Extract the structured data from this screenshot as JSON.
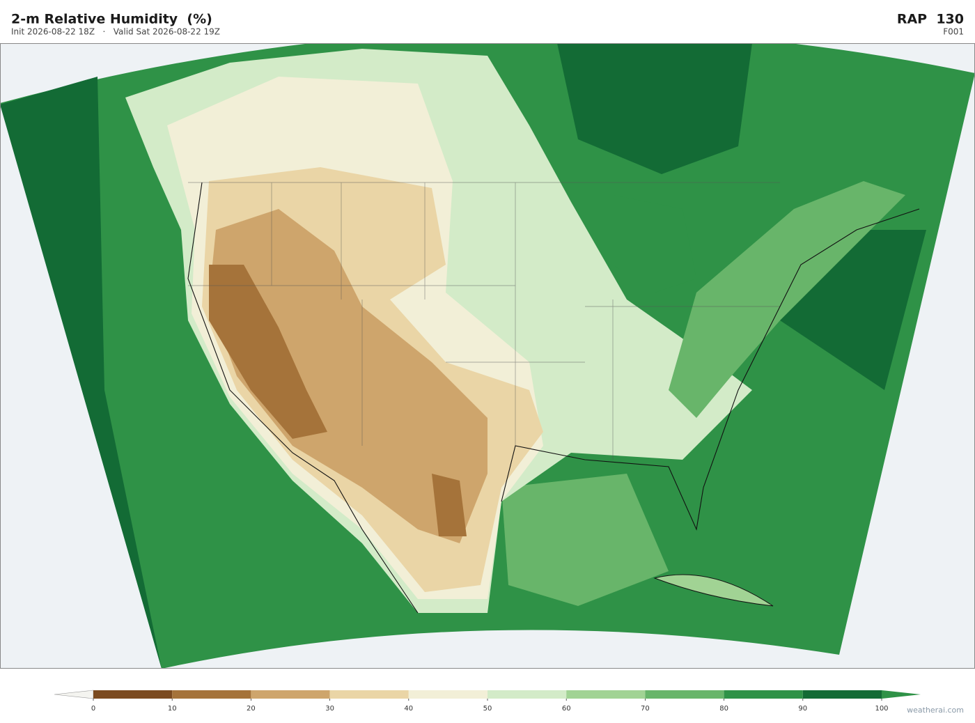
{
  "header": {
    "title": "2-m Relative Humidity  (%)",
    "subtitle": "Init 2026-08-22 18Z   ·   Valid Sat 2026-08-22 19Z",
    "model": "RAP  130",
    "forecast_hour": "F001"
  },
  "colorbar": {
    "ticks": [
      0,
      10,
      20,
      30,
      40,
      50,
      60,
      70,
      80,
      90,
      100
    ],
    "colors": [
      "#7b4a1f",
      "#a5733a",
      "#cea56c",
      "#ead5a6",
      "#f2efd7",
      "#d3ebc8",
      "#a1d394",
      "#68b56a",
      "#2f9247",
      "#136b35"
    ],
    "under_color": "#f4f4f0",
    "over_color": "#2f9247"
  },
  "footer": {
    "watermark": "weatherai.com"
  }
}
